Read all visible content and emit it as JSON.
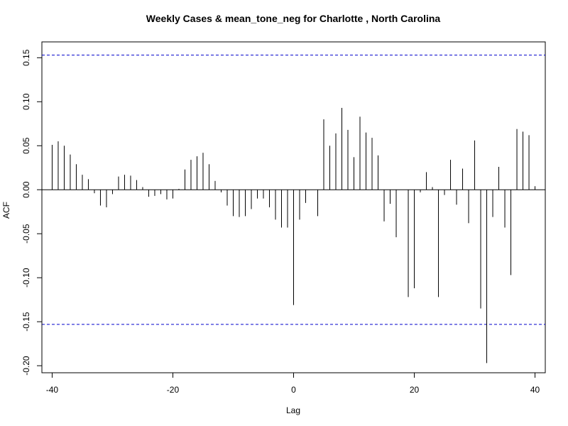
{
  "chart_data": {
    "type": "bar",
    "title": "Weekly Cases & mean_tone_neg for Charlotte , North Carolina",
    "xlabel": "Lag",
    "ylabel": "ACF",
    "xlim": [
      -41.7,
      41.7
    ],
    "ylim": [
      -0.208,
      0.168
    ],
    "xticks": [
      -40,
      -20,
      0,
      20,
      40
    ],
    "yticks": [
      -0.2,
      -0.15,
      -0.1,
      -0.05,
      0.0,
      0.05,
      0.1,
      0.15
    ],
    "ytick_labels": [
      "-0.20",
      "-0.15",
      "-0.10",
      "-0.05",
      "0.00",
      "0.05",
      "0.10",
      "0.15"
    ],
    "confidence_limit": 0.153,
    "confidence_color": "#0000cc",
    "lags": [
      -40,
      -39,
      -38,
      -37,
      -36,
      -35,
      -34,
      -33,
      -32,
      -31,
      -30,
      -29,
      -28,
      -27,
      -26,
      -25,
      -24,
      -23,
      -22,
      -21,
      -20,
      -19,
      -18,
      -17,
      -16,
      -15,
      -14,
      -13,
      -12,
      -11,
      -10,
      -9,
      -8,
      -7,
      -6,
      -5,
      -4,
      -3,
      -2,
      -1,
      0,
      1,
      2,
      3,
      4,
      5,
      6,
      7,
      8,
      9,
      10,
      11,
      12,
      13,
      14,
      15,
      16,
      17,
      18,
      19,
      20,
      21,
      22,
      23,
      24,
      25,
      26,
      27,
      28,
      29,
      30,
      31,
      32,
      33,
      34,
      35,
      36,
      37,
      38,
      39,
      40
    ],
    "values": [
      0.051,
      0.055,
      0.05,
      0.04,
      0.029,
      0.017,
      0.012,
      -0.004,
      -0.018,
      -0.02,
      -0.005,
      0.015,
      0.017,
      0.016,
      0.011,
      0.003,
      -0.008,
      -0.007,
      -0.005,
      -0.011,
      -0.01,
      0.001,
      0.023,
      0.034,
      0.038,
      0.042,
      0.029,
      0.01,
      -0.003,
      -0.018,
      -0.03,
      -0.031,
      -0.03,
      -0.022,
      -0.01,
      -0.01,
      -0.02,
      -0.034,
      -0.043,
      -0.043,
      -0.131,
      -0.034,
      -0.015,
      0.0,
      -0.03,
      0.08,
      0.05,
      0.064,
      0.093,
      0.068,
      0.037,
      0.083,
      0.065,
      0.059,
      0.039,
      -0.036,
      -0.016,
      -0.054,
      0.0,
      -0.122,
      -0.112,
      -0.003,
      0.02,
      0.003,
      -0.122,
      -0.006,
      0.034,
      -0.017,
      0.024,
      -0.038,
      0.056,
      -0.135,
      -0.197,
      -0.031,
      0.026,
      -0.043,
      -0.097,
      0.069,
      0.066,
      0.062,
      0.004
    ]
  }
}
